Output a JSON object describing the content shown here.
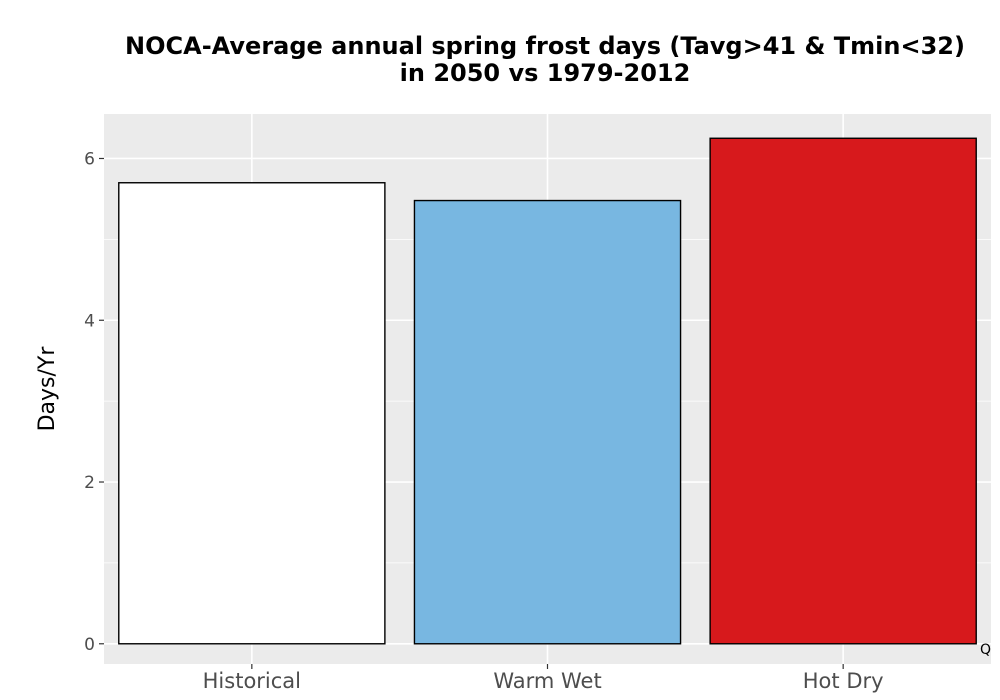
{
  "chart_data": {
    "type": "bar",
    "title": [
      "NOCA-Average annual spring frost days (Tavg>41 & Tmin<32)",
      "in 2050 vs 1979-2012"
    ],
    "xlabel": "",
    "ylabel": "Days/Yr",
    "categories": [
      "Historical",
      "Warm Wet",
      "Hot Dry"
    ],
    "values": [
      5.7,
      5.48,
      6.25
    ],
    "colors": [
      "#ffffff",
      "#78b7e1",
      "#d7191c"
    ],
    "bar_outline": "#000000",
    "ylim": [
      -0.25,
      6.55
    ],
    "yticks": [
      0,
      2,
      4,
      6
    ],
    "yticks_minor": [
      1,
      3,
      5
    ],
    "grid": true,
    "panel_background": "#ebebeb",
    "grid_color": "#ffffff",
    "corner_mark": "Q"
  }
}
